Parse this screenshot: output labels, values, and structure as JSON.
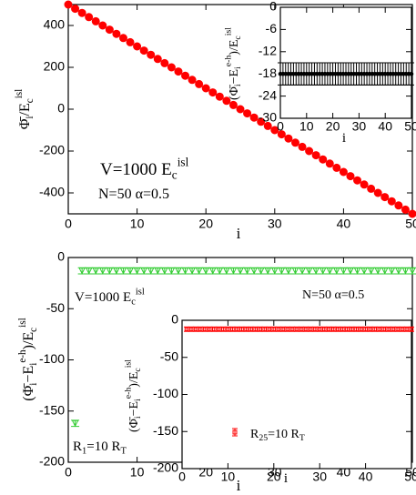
{
  "chart_data": [
    {
      "type": "scatter",
      "xlabel": [
        {
          "t": "i"
        }
      ],
      "ylabel": [
        {
          "t": "Φ̄"
        },
        {
          "t": "i",
          "s": "sub"
        },
        {
          "t": "/E"
        },
        {
          "t": "c",
          "s": "sub"
        },
        {
          "t": "isl",
          "s": "sup"
        }
      ],
      "annotations": [
        [
          {
            "t": "V=1000 E"
          },
          {
            "t": "c",
            "s": "sub"
          },
          {
            "t": "isl",
            "s": "sup"
          }
        ],
        [
          {
            "t": "N=50   α=0.5"
          }
        ]
      ],
      "xlim": [
        0,
        50
      ],
      "xticks": [
        0,
        10,
        20,
        30,
        40,
        50
      ],
      "ylim": [
        -500,
        500
      ],
      "yticks": [
        -400,
        -200,
        0,
        200,
        400
      ],
      "x": [
        0,
        1,
        2,
        3,
        4,
        5,
        6,
        7,
        8,
        9,
        10,
        11,
        12,
        13,
        14,
        15,
        16,
        17,
        18,
        19,
        20,
        21,
        22,
        23,
        24,
        25,
        26,
        27,
        28,
        29,
        30,
        31,
        32,
        33,
        34,
        35,
        36,
        37,
        38,
        39,
        40,
        41,
        42,
        43,
        44,
        45,
        46,
        47,
        48,
        49,
        50
      ],
      "series": [
        {
          "color": "#ff0000",
          "marker": "circle",
          "values": [
            500,
            480,
            460,
            440,
            420,
            400,
            380,
            360,
            340,
            320,
            300,
            280,
            260,
            240,
            220,
            200,
            180,
            160,
            140,
            120,
            100,
            80,
            60,
            40,
            20,
            0,
            -20,
            -40,
            -60,
            -80,
            -100,
            -120,
            -140,
            -160,
            -180,
            -200,
            -220,
            -240,
            -260,
            -280,
            -300,
            -320,
            -340,
            -360,
            -380,
            -400,
            -420,
            -440,
            -460,
            -480,
            -500
          ]
        }
      ]
    },
    {
      "type": "scatter",
      "xlabel": [
        {
          "t": "i"
        }
      ],
      "ylabel": [
        {
          "t": "(Φ̄"
        },
        {
          "t": "i",
          "s": "sub"
        },
        {
          "t": "−E"
        },
        {
          "t": "i",
          "s": "sub"
        },
        {
          "t": "e-h",
          "s": "sup"
        },
        {
          "t": ")/E"
        },
        {
          "t": "c",
          "s": "sub"
        },
        {
          "t": "isl",
          "s": "sup"
        }
      ],
      "xlim": [
        0,
        50
      ],
      "xticks": [
        0,
        10,
        20,
        30,
        40,
        50
      ],
      "ylim": [
        -30,
        0
      ],
      "yticks": [
        0,
        -6,
        -12,
        -18,
        -24,
        -30
      ],
      "x": [
        0,
        1,
        2,
        3,
        4,
        5,
        6,
        7,
        8,
        9,
        10,
        11,
        12,
        13,
        14,
        15,
        16,
        17,
        18,
        19,
        20,
        21,
        22,
        23,
        24,
        25,
        26,
        27,
        28,
        29,
        30,
        31,
        32,
        33,
        34,
        35,
        36,
        37,
        38,
        39,
        40,
        41,
        42,
        43,
        44,
        45,
        46,
        47,
        48,
        49,
        50
      ],
      "series": [
        {
          "color": "#000000",
          "marker": "circle",
          "error": 3,
          "values": [
            -18,
            -18,
            -18,
            -18,
            -18,
            -18,
            -18,
            -18,
            -18,
            -18,
            -18,
            -18,
            -18,
            -18,
            -18,
            -18,
            -18,
            -18,
            -18,
            -18,
            -18,
            -18,
            -18,
            -18,
            -18,
            -18,
            -18,
            -18,
            -18,
            -18,
            -18,
            -18,
            -18,
            -18,
            -18,
            -18,
            -18,
            -18,
            -18,
            -18,
            -18,
            -18,
            -18,
            -18,
            -18,
            -18,
            -18,
            -18,
            -18,
            -18,
            -18
          ]
        }
      ]
    },
    {
      "type": "scatter",
      "xlabel": [
        {
          "t": "i"
        }
      ],
      "ylabel": [
        {
          "t": "(Φ̄"
        },
        {
          "t": "i",
          "s": "sub"
        },
        {
          "t": "−E"
        },
        {
          "t": "i",
          "s": "sub"
        },
        {
          "t": "e-h",
          "s": "sup"
        },
        {
          "t": ")/E"
        },
        {
          "t": "c",
          "s": "sub"
        },
        {
          "t": "isl",
          "s": "sup"
        }
      ],
      "annotations": [
        [
          {
            "t": "V=1000 E"
          },
          {
            "t": "c",
            "s": "sub"
          },
          {
            "t": "isl",
            "s": "sup"
          }
        ],
        [
          {
            "t": "N=50  α=0.5"
          }
        ]
      ],
      "xlim": [
        0,
        50
      ],
      "xticks": [
        0,
        10,
        20,
        30,
        40,
        50
      ],
      "ylim": [
        -200,
        0
      ],
      "yticks": [
        0,
        -50,
        -100,
        -150,
        -200
      ],
      "x": [
        1,
        2,
        3,
        4,
        5,
        6,
        7,
        8,
        9,
        10,
        11,
        12,
        13,
        14,
        15,
        16,
        17,
        18,
        19,
        20,
        21,
        22,
        23,
        24,
        25,
        26,
        27,
        28,
        29,
        30,
        31,
        32,
        33,
        34,
        35,
        36,
        37,
        38,
        39,
        40,
        41,
        42,
        43,
        44,
        45,
        46,
        47,
        48,
        49,
        50
      ],
      "series": [
        {
          "name": [
            {
              "t": "R"
            },
            {
              "t": "1",
              "s": "sub"
            },
            {
              "t": "=10 R"
            },
            {
              "t": "T",
              "s": "sub"
            }
          ],
          "color": "#33cc33",
          "marker": "triangle",
          "error": 3,
          "values": [
            -162,
            -13,
            -13,
            -13,
            -13,
            -13,
            -13,
            -13,
            -13,
            -13,
            -13,
            -13,
            -13,
            -13,
            -13,
            -13,
            -13,
            -13,
            -13,
            -13,
            -13,
            -13,
            -13,
            -13,
            -13,
            -13,
            -13,
            -13,
            -13,
            -13,
            -13,
            -13,
            -13,
            -13,
            -13,
            -13,
            -13,
            -13,
            -13,
            -13,
            -13,
            -13,
            -13,
            -13,
            -13,
            -13,
            -13,
            -13,
            -13,
            -13
          ]
        }
      ]
    },
    {
      "type": "scatter",
      "xlabel": [
        {
          "t": "i"
        }
      ],
      "ylabel": [
        {
          "t": "(Φ̄"
        },
        {
          "t": "i",
          "s": "sub"
        },
        {
          "t": "−E"
        },
        {
          "t": "i",
          "s": "sub"
        },
        {
          "t": "e-h",
          "s": "sup"
        },
        {
          "t": ")/E"
        },
        {
          "t": "c",
          "s": "sub"
        },
        {
          "t": "isl",
          "s": "sup"
        }
      ],
      "xlim": [
        0,
        50
      ],
      "xticks": [
        0,
        10,
        20,
        30,
        40,
        50
      ],
      "ylim": [
        -200,
        0
      ],
      "yticks": [
        0,
        -50,
        -100,
        -150,
        -200
      ],
      "x": [
        1,
        2,
        3,
        4,
        5,
        6,
        7,
        8,
        9,
        10,
        11,
        12,
        13,
        14,
        15,
        16,
        17,
        18,
        19,
        20,
        21,
        22,
        23,
        24,
        25,
        26,
        27,
        28,
        29,
        30,
        31,
        32,
        33,
        34,
        35,
        36,
        37,
        38,
        39,
        40,
        41,
        42,
        43,
        44,
        45,
        46,
        47,
        48,
        49,
        50
      ],
      "series": [
        {
          "name": [
            {
              "t": "R"
            },
            {
              "t": "25",
              "s": "sub"
            },
            {
              "t": "=10 R"
            },
            {
              "t": "T",
              "s": "sub"
            }
          ],
          "color": "#ff0000",
          "marker": "square",
          "error": 3,
          "values": [
            -12,
            -12,
            -12,
            -12,
            -12,
            -12,
            -12,
            -12,
            -12,
            -12,
            -12,
            -12,
            -12,
            -12,
            -12,
            -12,
            -12,
            -12,
            -12,
            -12,
            -12,
            -12,
            -12,
            -12,
            -12,
            -12,
            -12,
            -12,
            -12,
            -12,
            -12,
            -12,
            -12,
            -12,
            -12,
            -12,
            -12,
            -12,
            -12,
            -12,
            -12,
            -12,
            -12,
            -12,
            -12,
            -12,
            -12,
            -12,
            -12,
            -12
          ]
        }
      ]
    }
  ]
}
